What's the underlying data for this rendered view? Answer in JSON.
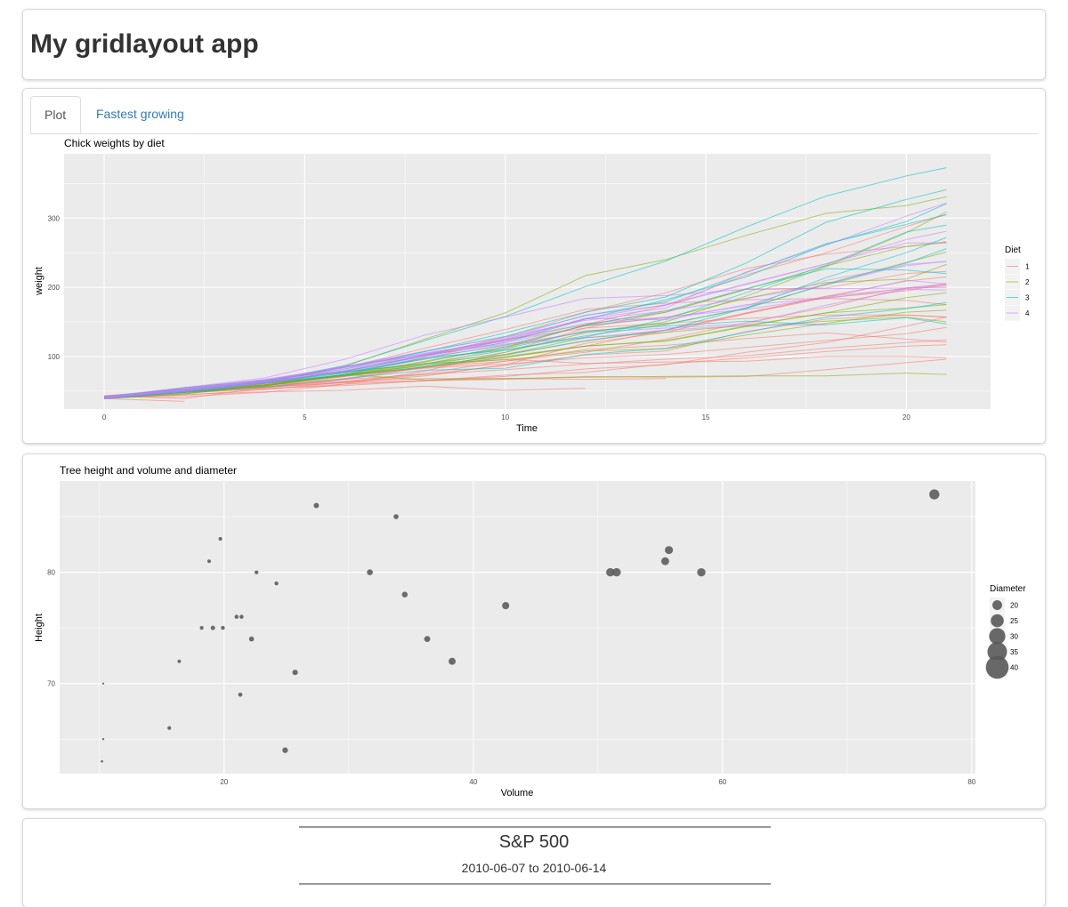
{
  "app": {
    "title": "My gridlayout app"
  },
  "tabs": [
    {
      "label": "Plot",
      "active": true
    },
    {
      "label": "Fastest growing",
      "active": false
    }
  ],
  "colors": {
    "diet_1": "#F8766D",
    "diet_2": "#7CAE00",
    "diet_3": "#00BFC4",
    "diet_4": "#C77CFF",
    "panel": "#EBEBEB",
    "point": "#595959"
  },
  "chart_data": [
    {
      "type": "line",
      "title": "Chick weights by diet",
      "xlabel": "Time",
      "ylabel": "weight",
      "xlim": [
        -1,
        22.1
      ],
      "ylim": [
        24,
        393
      ],
      "xticks": [
        0,
        5,
        10,
        15,
        20
      ],
      "yticks": [
        100,
        200,
        300
      ],
      "legend": {
        "title": "Diet",
        "placement": "right",
        "labels": [
          "1",
          "2",
          "3",
          "4"
        ]
      },
      "x": [
        0,
        2,
        4,
        6,
        8,
        10,
        12,
        14,
        16,
        18,
        20,
        21
      ],
      "series": [
        {
          "diet": "1",
          "values": [
            42,
            51,
            59,
            64,
            76,
            93,
            106,
            125,
            149,
            171,
            199,
            205
          ]
        },
        {
          "diet": "1",
          "values": [
            40,
            49,
            58,
            72,
            84,
            103,
            122,
            138,
            162,
            187,
            209,
            215
          ]
        },
        {
          "diet": "1",
          "values": [
            43,
            39,
            55,
            67,
            84,
            99,
            115,
            138,
            163,
            187,
            198,
            202
          ]
        },
        {
          "diet": "1",
          "values": [
            42,
            49,
            56,
            67,
            74,
            87,
            102,
            108,
            136,
            154,
            160,
            157
          ]
        },
        {
          "diet": "1",
          "values": [
            41,
            42,
            48,
            60,
            79,
            106,
            141,
            164,
            197,
            199,
            220,
            223
          ]
        },
        {
          "diet": "1",
          "values": [
            41,
            49,
            59,
            74,
            97,
            124,
            141,
            148,
            155,
            160,
            160,
            157
          ]
        },
        {
          "diet": "1",
          "values": [
            41,
            49,
            57,
            71,
            89,
            112,
            146,
            174,
            218,
            250,
            288,
            305
          ]
        },
        {
          "diet": "1",
          "values": [
            42,
            50,
            61,
            71,
            84,
            93,
            110,
            116,
            126,
            134,
            125,
            121
          ]
        },
        {
          "diet": "1",
          "values": [
            42,
            51,
            59,
            68,
            85,
            96,
            90,
            92,
            93,
            100,
            100,
            98
          ]
        },
        {
          "diet": "1",
          "values": [
            41,
            44,
            52,
            63,
            74,
            81,
            89,
            96,
            101,
            112,
            120,
            124
          ]
        },
        {
          "diet": "1",
          "values": [
            43,
            51,
            63,
            84,
            112,
            139,
            168,
            177,
            182,
            184,
            181,
            175
          ]
        },
        {
          "diet": "1",
          "values": [
            41,
            49,
            56,
            62,
            72,
            88,
            119,
            135,
            162,
            185,
            195,
            205
          ]
        },
        {
          "diet": "1",
          "values": [
            41,
            48,
            53,
            60,
            65,
            67,
            71,
            70,
            71,
            81,
            91,
            96
          ]
        },
        {
          "diet": "1",
          "values": [
            41,
            49,
            62,
            79,
            101,
            128,
            164,
            192,
            227,
            248,
            259,
            266
          ]
        },
        {
          "diet": "1",
          "values": [
            41,
            49,
            56,
            64,
            68,
            68,
            67,
            68,
            null,
            null,
            null,
            null
          ]
        },
        {
          "diet": "1",
          "values": [
            41,
            45,
            49,
            51,
            57,
            51,
            54,
            null,
            null,
            null,
            null,
            null
          ]
        },
        {
          "diet": "1",
          "values": [
            42,
            51,
            61,
            72,
            83,
            89,
            98,
            103,
            113,
            123,
            133,
            142
          ]
        },
        {
          "diet": "1",
          "values": [
            39,
            35,
            null,
            null,
            null,
            null,
            null,
            null,
            null,
            null,
            null,
            null
          ]
        },
        {
          "diet": "1",
          "values": [
            43,
            48,
            55,
            62,
            65,
            71,
            82,
            88,
            106,
            120,
            144,
            157
          ]
        },
        {
          "diet": "1",
          "values": [
            41,
            47,
            54,
            58,
            65,
            73,
            77,
            89,
            98,
            107,
            115,
            117
          ]
        },
        {
          "diet": "2",
          "values": [
            40,
            50,
            62,
            86,
            125,
            163,
            217,
            240,
            275,
            307,
            318,
            331
          ]
        },
        {
          "diet": "2",
          "values": [
            41,
            55,
            64,
            77,
            90,
            95,
            108,
            111,
            131,
            148,
            164,
            167
          ]
        },
        {
          "diet": "2",
          "values": [
            43,
            52,
            61,
            73,
            90,
            103,
            127,
            135,
            145,
            163,
            170,
            175
          ]
        },
        {
          "diet": "2",
          "values": [
            42,
            52,
            58,
            74,
            66,
            68,
            70,
            71,
            72,
            72,
            76,
            74
          ]
        },
        {
          "diet": "2",
          "values": [
            40,
            49,
            62,
            78,
            102,
            124,
            146,
            164,
            197,
            231,
            259,
            265
          ]
        },
        {
          "diet": "2",
          "values": [
            42,
            48,
            57,
            74,
            93,
            114,
            136,
            147,
            169,
            205,
            236,
            251
          ]
        },
        {
          "diet": "2",
          "values": [
            39,
            46,
            58,
            73,
            87,
            100,
            115,
            123,
            144,
            163,
            185,
            192
          ]
        },
        {
          "diet": "2",
          "values": [
            39,
            46,
            58,
            73,
            92,
            114,
            145,
            156,
            184,
            207,
            212,
            233
          ]
        },
        {
          "diet": "2",
          "values": [
            39,
            48,
            59,
            74,
            87,
            106,
            134,
            150,
            187,
            230,
            279,
            309
          ]
        },
        {
          "diet": "2",
          "values": [
            42,
            48,
            59,
            72,
            85,
            98,
            115,
            122,
            143,
            151,
            157,
            150
          ]
        },
        {
          "diet": "3",
          "values": [
            42,
            53,
            62,
            73,
            85,
            102,
            123,
            138,
            170,
            204,
            235,
            256
          ]
        },
        {
          "diet": "3",
          "values": [
            41,
            49,
            65,
            82,
            107,
            129,
            159,
            179,
            221,
            263,
            291,
            305
          ]
        },
        {
          "diet": "3",
          "values": [
            39,
            50,
            63,
            77,
            96,
            111,
            137,
            144,
            151,
            146,
            156,
            147
          ]
        },
        {
          "diet": "3",
          "values": [
            41,
            49,
            63,
            85,
            107,
            134,
            164,
            186,
            235,
            294,
            327,
            341
          ]
        },
        {
          "diet": "3",
          "values": [
            41,
            53,
            64,
            87,
            123,
            158,
            201,
            238,
            287,
            332,
            361,
            373
          ]
        },
        {
          "diet": "3",
          "values": [
            39,
            48,
            61,
            76,
            98,
            116,
            145,
            166,
            198,
            227,
            225,
            220
          ]
        },
        {
          "diet": "3",
          "values": [
            41,
            48,
            56,
            68,
            80,
            83,
            103,
            112,
            135,
            157,
            169,
            178
          ]
        },
        {
          "diet": "3",
          "values": [
            41,
            49,
            61,
            74,
            98,
            109,
            128,
            154,
            192,
            232,
            280,
            290
          ]
        },
        {
          "diet": "3",
          "values": [
            42,
            50,
            61,
            78,
            89,
            109,
            130,
            146,
            170,
            214,
            250,
            272
          ]
        },
        {
          "diet": "3",
          "values": [
            41,
            55,
            66,
            79,
            101,
            120,
            154,
            182,
            215,
            262,
            295,
            321
          ]
        },
        {
          "diet": "4",
          "values": [
            42,
            51,
            66,
            85,
            103,
            124,
            155,
            153,
            175,
            184,
            199,
            204
          ]
        },
        {
          "diet": "4",
          "values": [
            42,
            49,
            63,
            84,
            103,
            126,
            160,
            174,
            204,
            234,
            269,
            281
          ]
        },
        {
          "diet": "4",
          "values": [
            42,
            55,
            69,
            96,
            131,
            157,
            184,
            188,
            197,
            198,
            199,
            200
          ]
        },
        {
          "diet": "4",
          "values": [
            42,
            51,
            65,
            86,
            103,
            118,
            127,
            138,
            145,
            146,
            null,
            null
          ]
        },
        {
          "diet": "4",
          "values": [
            41,
            50,
            61,
            78,
            98,
            117,
            135,
            141,
            147,
            174,
            197,
            196
          ]
        },
        {
          "diet": "4",
          "values": [
            40,
            52,
            62,
            82,
            101,
            120,
            144,
            156,
            173,
            210,
            231,
            238
          ]
        },
        {
          "diet": "4",
          "values": [
            41,
            53,
            66,
            79,
            100,
            123,
            148,
            157,
            168,
            185,
            210,
            205
          ]
        },
        {
          "diet": "4",
          "values": [
            39,
            50,
            62,
            80,
            104,
            125,
            154,
            170,
            222,
            261,
            303,
            322
          ]
        },
        {
          "diet": "4",
          "values": [
            40,
            53,
            64,
            85,
            108,
            128,
            152,
            166,
            184,
            203,
            233,
            237
          ]
        },
        {
          "diet": "4",
          "values": [
            41,
            54,
            67,
            84,
            105,
            122,
            155,
            175,
            205,
            234,
            264,
            264
          ]
        }
      ]
    },
    {
      "type": "scatter",
      "title": "Tree height and volume and diameter",
      "xlabel": "Volume",
      "ylabel": "Height",
      "xlim": [
        6.8,
        80.3
      ],
      "ylim": [
        61.9,
        88.2
      ],
      "xticks": [
        20,
        40,
        60,
        80
      ],
      "yticks": [
        70,
        80
      ],
      "legend": {
        "title": "Diameter",
        "placement": "right",
        "labels": [
          "20",
          "25",
          "30",
          "35",
          "40"
        ]
      },
      "points": [
        {
          "x": 10.3,
          "y": 70,
          "d": 8.3
        },
        {
          "x": 10.3,
          "y": 65,
          "d": 8.6
        },
        {
          "x": 10.2,
          "y": 63,
          "d": 8.8
        },
        {
          "x": 16.4,
          "y": 72,
          "d": 10.5
        },
        {
          "x": 18.8,
          "y": 81,
          "d": 10.7
        },
        {
          "x": 19.7,
          "y": 83,
          "d": 10.8
        },
        {
          "x": 15.6,
          "y": 66,
          "d": 11.0
        },
        {
          "x": 18.2,
          "y": 75,
          "d": 11.0
        },
        {
          "x": 22.6,
          "y": 80,
          "d": 11.1
        },
        {
          "x": 19.9,
          "y": 75,
          "d": 11.2
        },
        {
          "x": 24.2,
          "y": 79,
          "d": 11.3
        },
        {
          "x": 21.0,
          "y": 76,
          "d": 11.4
        },
        {
          "x": 21.4,
          "y": 76,
          "d": 11.4
        },
        {
          "x": 21.3,
          "y": 69,
          "d": 11.7
        },
        {
          "x": 19.1,
          "y": 75,
          "d": 12.0
        },
        {
          "x": 22.2,
          "y": 74,
          "d": 12.9
        },
        {
          "x": 33.8,
          "y": 85,
          "d": 12.9
        },
        {
          "x": 27.4,
          "y": 86,
          "d": 13.3
        },
        {
          "x": 25.7,
          "y": 71,
          "d": 13.7
        },
        {
          "x": 24.9,
          "y": 64,
          "d": 13.8
        },
        {
          "x": 34.5,
          "y": 78,
          "d": 14.0
        },
        {
          "x": 31.7,
          "y": 80,
          "d": 14.2
        },
        {
          "x": 36.3,
          "y": 74,
          "d": 14.5
        },
        {
          "x": 38.3,
          "y": 72,
          "d": 16.0
        },
        {
          "x": 42.6,
          "y": 77,
          "d": 16.3
        },
        {
          "x": 55.4,
          "y": 81,
          "d": 17.3
        },
        {
          "x": 55.7,
          "y": 82,
          "d": 17.5
        },
        {
          "x": 58.3,
          "y": 80,
          "d": 17.9
        },
        {
          "x": 51.5,
          "y": 80,
          "d": 18.0
        },
        {
          "x": 51.0,
          "y": 80,
          "d": 18.0
        },
        {
          "x": 77.0,
          "y": 87,
          "d": 20.6
        }
      ]
    }
  ],
  "sp500": {
    "title": "S&P 500",
    "range": "2010-06-07 to 2010-06-14"
  }
}
